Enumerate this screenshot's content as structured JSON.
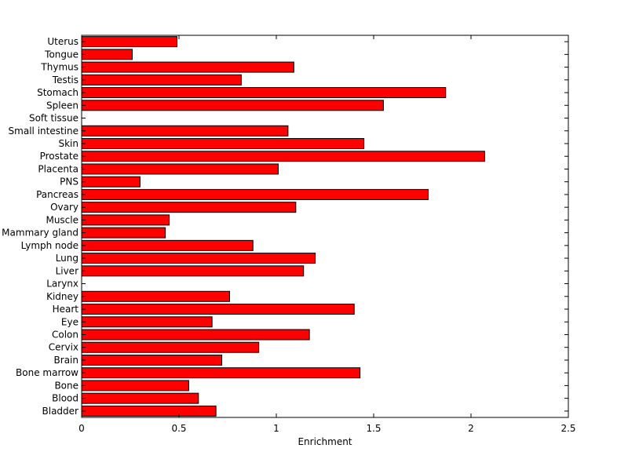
{
  "chart_data": {
    "type": "bar",
    "orientation": "horizontal",
    "title": "",
    "xlabel": "Enrichment",
    "ylabel": "",
    "xlim": [
      0,
      2.5
    ],
    "xticks": [
      0,
      0.5,
      1,
      1.5,
      2,
      2.5
    ],
    "xtick_labels": [
      "0",
      "0.5",
      "1",
      "1.5",
      "2",
      "2.5"
    ],
    "grid": false,
    "bar_color": "#ff0000",
    "edge_color": "#000000",
    "categories": [
      "Bladder",
      "Blood",
      "Bone",
      "Bone marrow",
      "Brain",
      "Cervix",
      "Colon",
      "Eye",
      "Heart",
      "Kidney",
      "Larynx",
      "Liver",
      "Lung",
      "Lymph node",
      "Mammary gland",
      "Muscle",
      "Ovary",
      "Pancreas",
      "PNS",
      "Placenta",
      "Prostate",
      "Skin",
      "Small intestine",
      "Soft tissue",
      "Spleen",
      "Stomach",
      "Testis",
      "Thymus",
      "Tongue",
      "Uterus"
    ],
    "values": [
      0.69,
      0.6,
      0.55,
      1.43,
      0.72,
      0.91,
      1.17,
      0.67,
      1.4,
      0.76,
      0,
      1.14,
      1.2,
      0.88,
      0.43,
      0.45,
      1.1,
      1.78,
      0.3,
      1.01,
      2.07,
      1.45,
      1.06,
      0,
      1.55,
      1.87,
      0.82,
      1.09,
      0.26,
      0.49
    ]
  }
}
